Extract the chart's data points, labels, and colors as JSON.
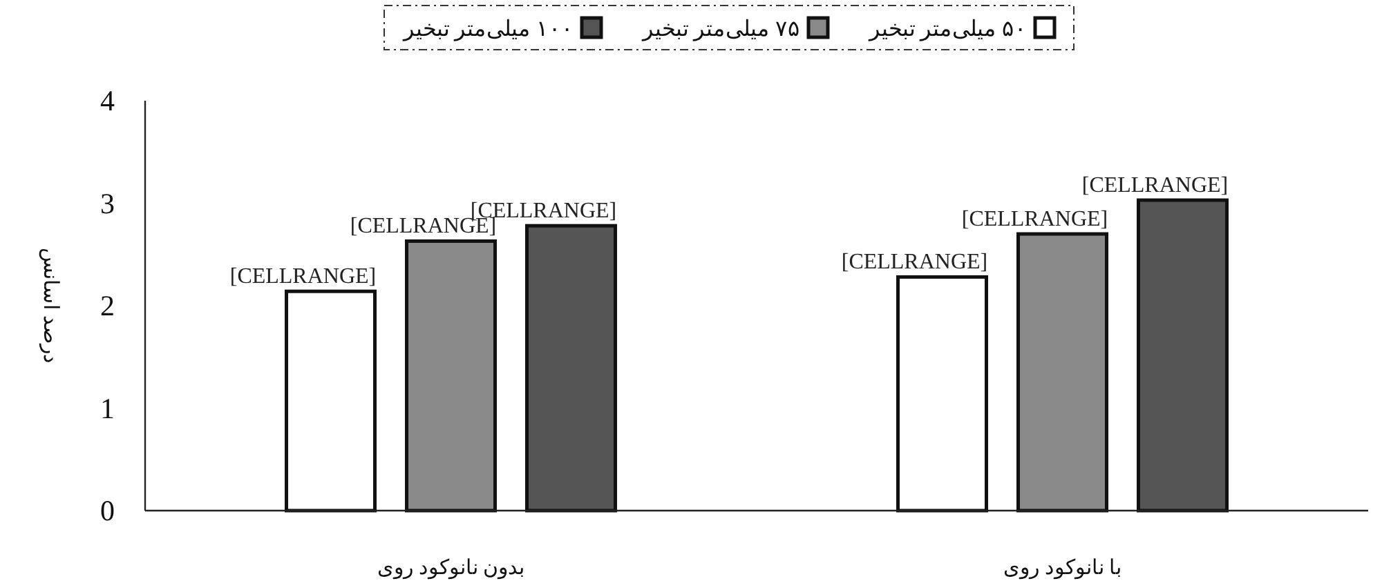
{
  "chart_data": {
    "type": "bar",
    "ylabel": "درصد اسانس",
    "categories": [
      "بدون نانوکود روی",
      "با نانوکود روی"
    ],
    "series": [
      {
        "name": "۵۰ میلی‌متر تبخیر",
        "color": "#ffffff",
        "values": [
          2.14,
          2.28
        ],
        "value_labels": [
          "[CELLRANGE]",
          "[CELLRANGE]"
        ]
      },
      {
        "name": "۷۵ میلی‌متر تبخیر",
        "color": "#8a8a8a",
        "values": [
          2.63,
          2.7
        ],
        "value_labels": [
          "[CELLRANGE]",
          "[CELLRANGE]"
        ]
      },
      {
        "name": "۱۰۰ میلی‌متر تبخیر",
        "color": "#555555",
        "values": [
          2.78,
          3.03
        ],
        "value_labels": [
          "[CELLRANGE]",
          "[CELLRANGE]"
        ]
      }
    ],
    "ylim": [
      0,
      4
    ],
    "yticks": [
      0,
      1,
      2,
      3,
      4
    ],
    "grid": false,
    "legend": "top"
  }
}
